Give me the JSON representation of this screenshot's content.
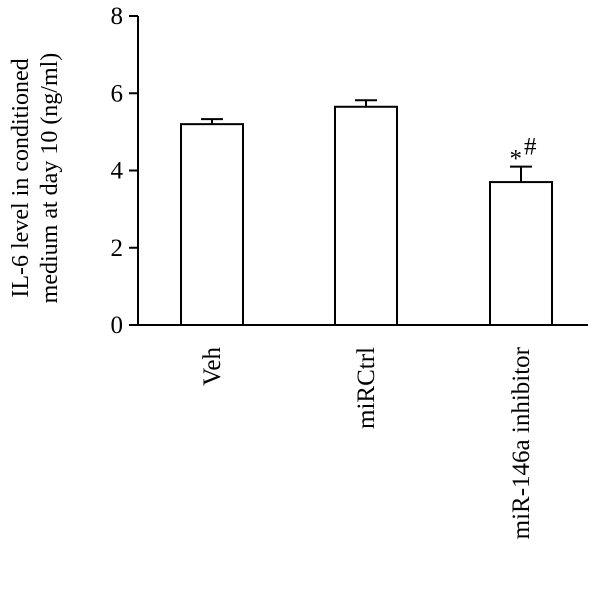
{
  "chart_data": {
    "type": "bar",
    "categories": [
      "Veh",
      "miRCtrl",
      "miR-146a inhibitor"
    ],
    "values": [
      5.2,
      5.65,
      3.7
    ],
    "errors": [
      0.13,
      0.17,
      0.4
    ],
    "annotations": [
      "",
      "",
      "*#"
    ],
    "ylabel_lines": [
      "IL-6 level in conditioned",
      "medium at day 10 (ng/ml)"
    ],
    "xlabel": "",
    "ylim": [
      0,
      8
    ],
    "yticks": [
      0,
      2,
      4,
      6,
      8
    ],
    "grid": false,
    "legend": "none",
    "bar_fill": "#ffffff",
    "bar_stroke": "#000000"
  }
}
